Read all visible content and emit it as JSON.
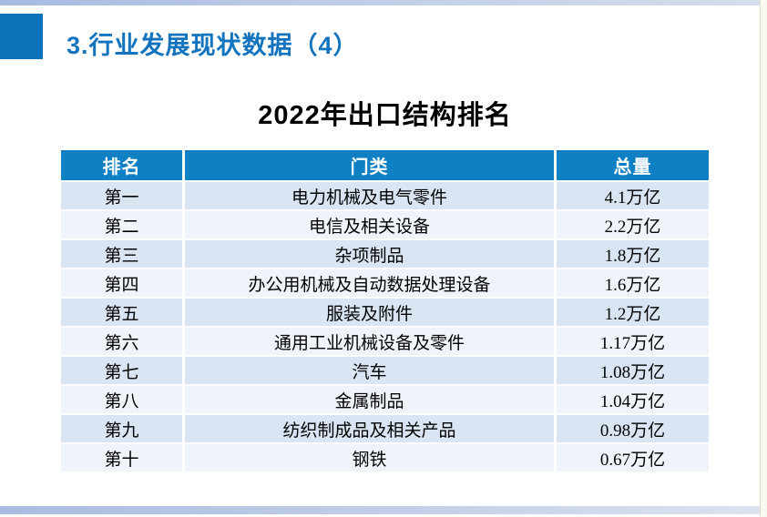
{
  "slide": {
    "heading": "3.行业发展现状数据（4）",
    "table_title": "2022年出口结构排名"
  },
  "table": {
    "headers": [
      "排名",
      "门类",
      "总量"
    ],
    "rows": [
      {
        "rank": "第一",
        "category": "电力机械及电气零件",
        "total": "4.1万亿"
      },
      {
        "rank": "第二",
        "category": "电信及相关设备",
        "total": "2.2万亿"
      },
      {
        "rank": "第三",
        "category": "杂项制品",
        "total": "1.8万亿"
      },
      {
        "rank": "第四",
        "category": "办公用机械及自动数据处理设备",
        "total": "1.6万亿"
      },
      {
        "rank": "第五",
        "category": "服装及附件",
        "total": "1.2万亿"
      },
      {
        "rank": "第六",
        "category": "通用工业机械设备及零件",
        "total": "1.17万亿"
      },
      {
        "rank": "第七",
        "category": "汽车",
        "total": "1.08万亿"
      },
      {
        "rank": "第八",
        "category": "金属制品",
        "total": "1.04万亿"
      },
      {
        "rank": "第九",
        "category": "纺织制成品及相关产品",
        "total": "0.98万亿"
      },
      {
        "rank": "第十",
        "category": "钢铁",
        "total": "0.67万亿"
      }
    ]
  },
  "colors": {
    "accent_blue": "#0d72b9",
    "heading_blue": "#1273be",
    "table_header_blue": "#0f80c3",
    "row_odd": "#d9e5f2",
    "row_even": "#eff4fb",
    "accent_bar_left": "#a9bce1",
    "accent_bar_right": "#dce3ef"
  }
}
